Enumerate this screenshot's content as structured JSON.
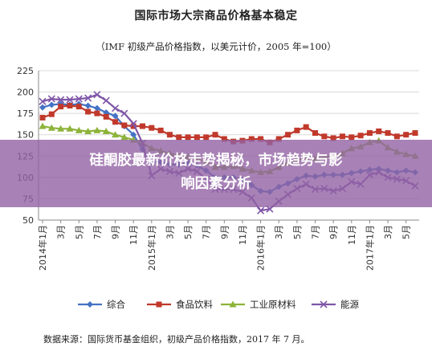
{
  "chart_data": {
    "type": "line",
    "title": "国际市场大宗商品价格基本稳定",
    "subtitle": "（IMF 初级产品价格指数，以美元计价，2005 年=100）",
    "source": "数据来源：国际货币基金组织，初级产品价格指数，2017 年 7 月。",
    "ylim": [
      50,
      225
    ],
    "yticks": [
      50,
      75,
      100,
      125,
      150,
      175,
      200,
      225
    ],
    "grid": true,
    "legend_position": "bottom",
    "xtick_labels": [
      "2014年1月",
      "3月",
      "5月",
      "7月",
      "9月",
      "11月",
      "2015年1月",
      "3月",
      "5月",
      "7月",
      "9月",
      "11月",
      "2016年1月",
      "3月",
      "5月",
      "7月",
      "9月",
      "11月",
      "2017年1月",
      "3月",
      "5月"
    ],
    "x": [
      "2014-01",
      "2014-02",
      "2014-03",
      "2014-04",
      "2014-05",
      "2014-06",
      "2014-07",
      "2014-08",
      "2014-09",
      "2014-10",
      "2014-11",
      "2014-12",
      "2015-01",
      "2015-02",
      "2015-03",
      "2015-04",
      "2015-05",
      "2015-06",
      "2015-07",
      "2015-08",
      "2015-09",
      "2015-10",
      "2015-11",
      "2015-12",
      "2016-01",
      "2016-02",
      "2016-03",
      "2016-04",
      "2016-05",
      "2016-06",
      "2016-07",
      "2016-08",
      "2016-09",
      "2016-10",
      "2016-11",
      "2016-12",
      "2017-01",
      "2017-02",
      "2017-03",
      "2017-04",
      "2017-05",
      "2017-06"
    ],
    "series": [
      {
        "name": "综合",
        "color": "#4472C4",
        "marker": "diamond",
        "values": [
          182,
          185,
          186,
          185,
          186,
          184,
          181,
          176,
          172,
          160,
          150,
          133,
          118,
          118,
          115,
          115,
          117,
          114,
          108,
          100,
          100,
          100,
          97,
          91,
          84,
          83,
          89,
          93,
          98,
          102,
          101,
          103,
          103,
          103,
          105,
          107,
          109,
          110,
          108,
          106,
          108,
          106
        ]
      },
      {
        "name": "食品饮料",
        "color": "#C0392B",
        "marker": "square",
        "values": [
          170,
          174,
          183,
          184,
          183,
          177,
          175,
          171,
          165,
          161,
          160,
          160,
          158,
          155,
          150,
          147,
          147,
          147,
          147,
          150,
          145,
          142,
          143,
          145,
          145,
          141,
          145,
          150,
          155,
          159,
          152,
          148,
          146,
          148,
          147,
          149,
          152,
          154,
          152,
          148,
          150,
          152
        ]
      },
      {
        "name": "工业原材料",
        "color": "#8DB33A",
        "marker": "triangle",
        "values": [
          160,
          158,
          157,
          157,
          155,
          154,
          155,
          154,
          150,
          147,
          144,
          140,
          134,
          131,
          128,
          125,
          124,
          122,
          118,
          112,
          112,
          113,
          110,
          108,
          106,
          107,
          112,
          117,
          120,
          124,
          122,
          124,
          125,
          128,
          134,
          136,
          141,
          143,
          135,
          130,
          127,
          125
        ]
      },
      {
        "name": "能源",
        "color": "#7F56A8",
        "marker": "cross",
        "values": [
          189,
          192,
          191,
          191,
          192,
          193,
          197,
          190,
          181,
          175,
          163,
          140,
          102,
          110,
          107,
          105,
          110,
          107,
          98,
          86,
          86,
          86,
          83,
          76,
          61,
          63,
          72,
          80,
          87,
          92,
          86,
          87,
          84,
          87,
          95,
          92,
          103,
          106,
          100,
          98,
          96,
          90
        ]
      }
    ]
  },
  "banner": {
    "line1": "硅酮胶最新价格走势揭秘，市场趋势与影",
    "line2": "响因素分析"
  }
}
